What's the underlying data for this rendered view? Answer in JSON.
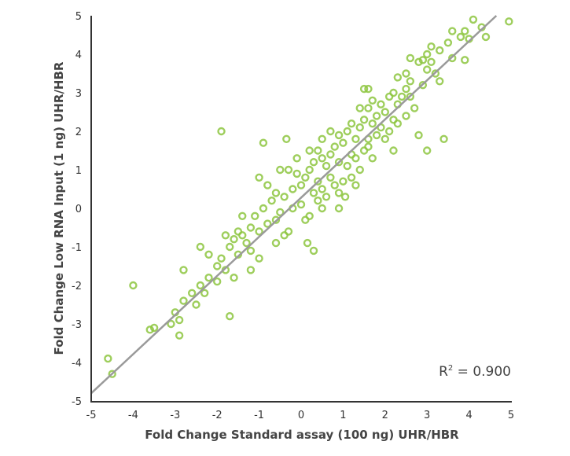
{
  "chart_data": {
    "type": "scatter",
    "xlabel": "Fold Change Standard assay (100 ng) UHR/HBR",
    "ylabel": "Fold Change Low RNA Input (1 ng) UHR/HBR",
    "xlim": [
      -5,
      5
    ],
    "ylim": [
      -5,
      5
    ],
    "xticks": [
      "-5",
      "-4",
      "-3",
      "-2",
      "-1",
      "0",
      "1",
      "2",
      "3",
      "4",
      "5"
    ],
    "yticks": [
      "-5",
      "-4",
      "-3",
      "-2",
      "-1",
      "0",
      "1",
      "2",
      "3",
      "4",
      "5"
    ],
    "grid": false,
    "annotation": {
      "text": "R",
      "sup": "2",
      "rest": " = 0.900"
    },
    "trendline": {
      "x": [
        -5,
        4.65
      ],
      "y": [
        -4.8,
        5
      ]
    },
    "colors": {
      "points": "#8dc63f",
      "trendline": "#9a9a9a",
      "axis": "#333333"
    },
    "points": [
      [
        -1.9,
        2.0
      ],
      [
        -4.0,
        -2.0
      ],
      [
        -4.6,
        -3.9
      ],
      [
        -4.5,
        -4.3
      ],
      [
        -3.6,
        -3.15
      ],
      [
        -3.5,
        -3.1
      ],
      [
        -2.9,
        -3.3
      ],
      [
        -1.7,
        -2.8
      ],
      [
        -2.4,
        -1.0
      ],
      [
        -2.8,
        -1.6
      ],
      [
        -0.9,
        1.7
      ],
      [
        -0.35,
        1.8
      ],
      [
        3.0,
        1.5
      ],
      [
        3.4,
        1.8
      ],
      [
        2.8,
        1.9
      ],
      [
        4.95,
        4.85
      ],
      [
        4.1,
        4.9
      ],
      [
        3.9,
        4.6
      ],
      [
        4.4,
        4.45
      ],
      [
        3.9,
        3.85
      ],
      [
        1.05,
        0.3
      ],
      [
        0.3,
        -1.1
      ],
      [
        0.15,
        -0.9
      ],
      [
        -1.2,
        -1.6
      ],
      [
        -1.0,
        -1.3
      ],
      [
        -0.3,
        -0.6
      ],
      [
        -0.6,
        -0.9
      ],
      [
        3.6,
        4.6
      ],
      [
        3.8,
        4.45
      ],
      [
        3.5,
        4.3
      ],
      [
        3.3,
        4.1
      ],
      [
        3.1,
        4.2
      ],
      [
        3.0,
        4.0
      ],
      [
        2.9,
        3.85
      ],
      [
        3.1,
        3.8
      ],
      [
        3.2,
        3.5
      ],
      [
        2.8,
        3.8
      ],
      [
        2.6,
        3.9
      ],
      [
        3.0,
        3.6
      ],
      [
        2.5,
        3.5
      ],
      [
        2.3,
        3.4
      ],
      [
        2.6,
        3.3
      ],
      [
        2.5,
        3.1
      ],
      [
        2.2,
        3.0
      ],
      [
        2.4,
        2.9
      ],
      [
        2.1,
        2.9
      ],
      [
        2.3,
        2.7
      ],
      [
        1.5,
        3.1
      ],
      [
        1.6,
        3.1
      ],
      [
        1.7,
        2.8
      ],
      [
        1.6,
        2.6
      ],
      [
        1.9,
        2.7
      ],
      [
        2.0,
        2.5
      ],
      [
        2.2,
        2.3
      ],
      [
        1.5,
        2.3
      ],
      [
        1.4,
        2.1
      ],
      [
        1.7,
        2.2
      ],
      [
        1.9,
        2.1
      ],
      [
        2.1,
        2.0
      ],
      [
        2.3,
        2.2
      ],
      [
        1.8,
        1.9
      ],
      [
        1.6,
        1.8
      ],
      [
        1.2,
        2.2
      ],
      [
        1.1,
        2.0
      ],
      [
        1.3,
        1.8
      ],
      [
        1.0,
        1.7
      ],
      [
        0.9,
        1.9
      ],
      [
        1.5,
        1.5
      ],
      [
        1.2,
        1.4
      ],
      [
        0.8,
        1.6
      ],
      [
        0.7,
        1.4
      ],
      [
        0.5,
        1.3
      ],
      [
        0.4,
        1.5
      ],
      [
        0.3,
        1.2
      ],
      [
        0.6,
        1.1
      ],
      [
        0.9,
        1.2
      ],
      [
        1.1,
        1.1
      ],
      [
        1.4,
        1.0
      ],
      [
        1.6,
        1.6
      ],
      [
        0.2,
        1.0
      ],
      [
        0.1,
        0.8
      ],
      [
        0.4,
        0.7
      ],
      [
        0.7,
        0.8
      ],
      [
        0.8,
        0.6
      ],
      [
        1.0,
        0.7
      ],
      [
        1.2,
        0.8
      ],
      [
        0.5,
        0.5
      ],
      [
        0.3,
        0.4
      ],
      [
        0.0,
        0.6
      ],
      [
        -0.1,
        0.9
      ],
      [
        -0.3,
        1.0
      ],
      [
        -0.5,
        1.0
      ],
      [
        -0.2,
        0.5
      ],
      [
        -0.4,
        0.3
      ],
      [
        -0.6,
        0.4
      ],
      [
        -0.8,
        0.6
      ],
      [
        -1.0,
        0.8
      ],
      [
        -0.7,
        0.2
      ],
      [
        -0.9,
        0.0
      ],
      [
        -0.5,
        -0.1
      ],
      [
        -0.2,
        0.0
      ],
      [
        0.0,
        0.1
      ],
      [
        0.2,
        -0.2
      ],
      [
        0.4,
        0.2
      ],
      [
        0.6,
        0.3
      ],
      [
        -1.1,
        -0.2
      ],
      [
        -1.2,
        -0.5
      ],
      [
        -1.0,
        -0.6
      ],
      [
        -0.8,
        -0.4
      ],
      [
        -0.6,
        -0.3
      ],
      [
        -1.4,
        -0.7
      ],
      [
        -1.5,
        -0.6
      ],
      [
        -1.3,
        -0.9
      ],
      [
        -1.6,
        -0.8
      ],
      [
        -1.7,
        -1.0
      ],
      [
        -1.5,
        -1.2
      ],
      [
        -1.9,
        -1.3
      ],
      [
        -2.0,
        -1.5
      ],
      [
        -1.8,
        -1.6
      ],
      [
        -2.2,
        -1.8
      ],
      [
        -2.0,
        -1.9
      ],
      [
        -2.4,
        -2.0
      ],
      [
        -2.3,
        -2.2
      ],
      [
        -2.6,
        -2.2
      ],
      [
        -2.5,
        -2.5
      ],
      [
        -2.8,
        -2.4
      ],
      [
        -3.0,
        -2.7
      ],
      [
        -2.9,
        -2.9
      ],
      [
        -3.1,
        -3.0
      ],
      [
        -1.6,
        -1.8
      ],
      [
        -1.2,
        -1.1
      ],
      [
        0.1,
        -0.3
      ],
      [
        0.5,
        0.0
      ],
      [
        0.9,
        0.4
      ],
      [
        1.3,
        1.3
      ],
      [
        2.0,
        1.8
      ],
      [
        2.5,
        2.4
      ],
      [
        2.7,
        2.6
      ],
      [
        1.8,
        2.4
      ],
      [
        1.4,
        2.6
      ],
      [
        -0.1,
        1.3
      ],
      [
        0.2,
        1.5
      ],
      [
        0.5,
        1.8
      ],
      [
        0.7,
        2.0
      ],
      [
        -1.4,
        -0.2
      ],
      [
        -1.8,
        -0.7
      ],
      [
        -2.2,
        -1.2
      ],
      [
        -0.4,
        -0.7
      ],
      [
        0.9,
        0.0
      ],
      [
        1.3,
        0.6
      ],
      [
        1.7,
        1.3
      ],
      [
        2.2,
        1.5
      ],
      [
        2.6,
        2.9
      ],
      [
        2.9,
        3.2
      ],
      [
        3.3,
        3.3
      ],
      [
        3.6,
        3.9
      ],
      [
        4.0,
        4.4
      ],
      [
        4.3,
        4.7
      ]
    ]
  }
}
